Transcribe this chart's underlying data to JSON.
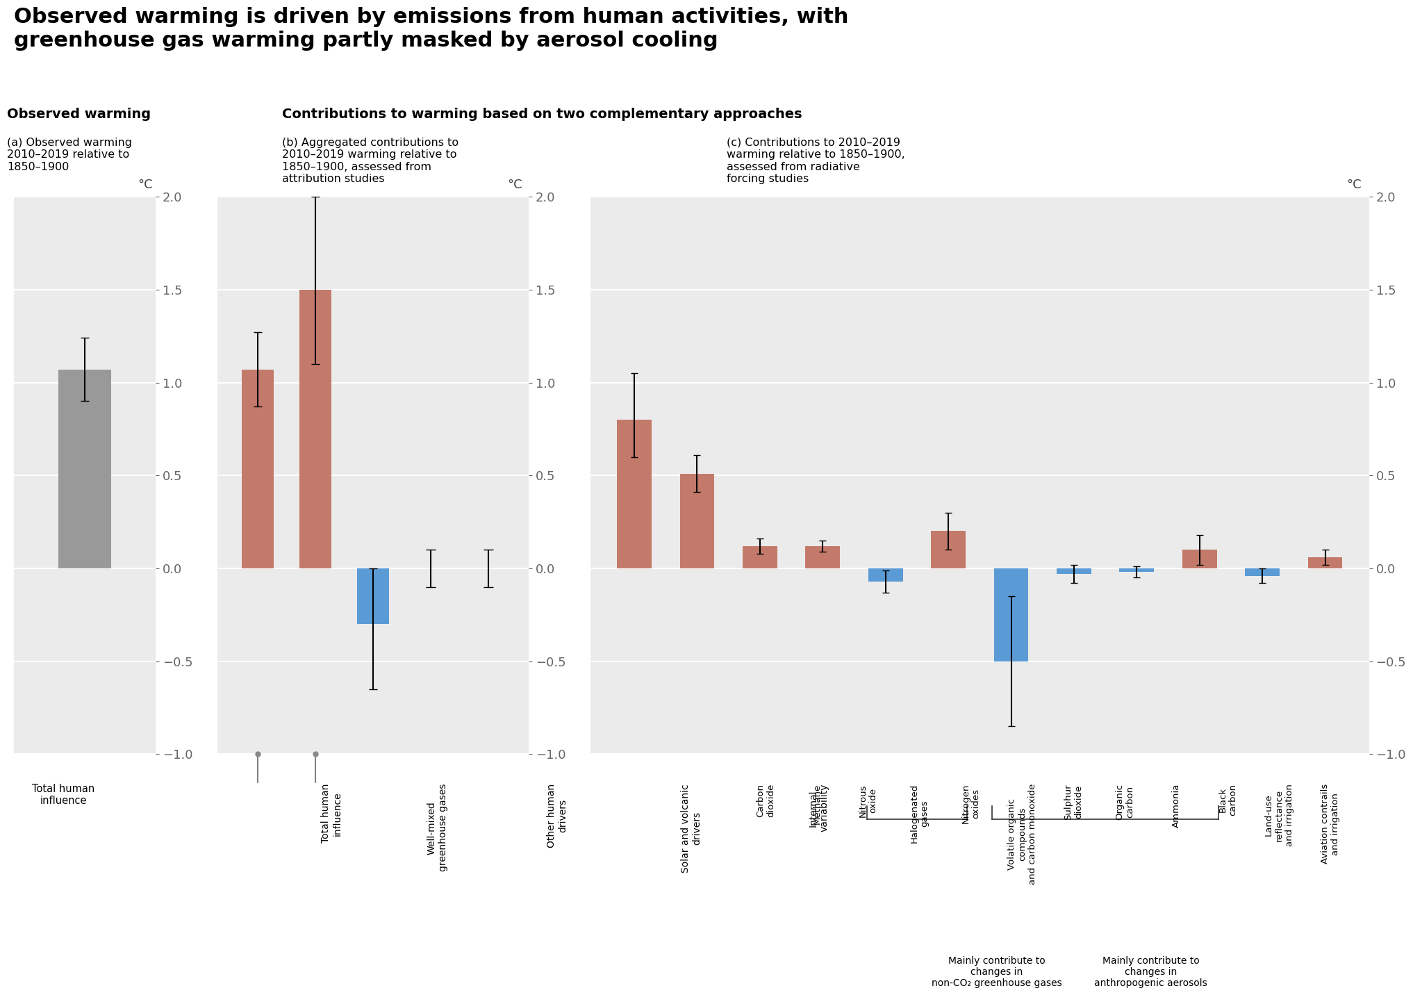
{
  "title": "Observed warming is driven by emissions from human activities, with\ngreenhouse gas warming partly masked by aerosol cooling",
  "title_fontsize": 22,
  "background_color": "#f5f5f5",
  "panel_bg": "#ebebeb",
  "section_headers": {
    "left": "Observed warming",
    "right": "Contributions to warming based on two complementary approaches"
  },
  "panel_a": {
    "subtitle": "(a) Observed warming\n2010–2019 relative to\n1850–1900",
    "ylabel": "°C",
    "ylim": [
      -1.0,
      2.0
    ],
    "yticks": [
      -1.0,
      -0.5,
      0.0,
      0.5,
      1.0,
      1.5,
      2.0
    ],
    "bars": [
      {
        "label": "Total human\ninfluence",
        "value": 1.07,
        "err_low": 0.17,
        "err_high": 0.17,
        "color": "#999999"
      }
    ]
  },
  "panel_b": {
    "subtitle": "(b) Aggregated contributions to\n2010–2019 warming relative to\n1850–1900, assessed from\nattribution studies",
    "ylabel": "°C",
    "ylim": [
      -1.0,
      2.0
    ],
    "yticks": [
      -1.0,
      -0.5,
      0.0,
      0.5,
      1.0,
      1.5,
      2.0
    ],
    "bars": [
      {
        "label": "Total human\ninfluence",
        "value": 1.07,
        "err_low": 0.2,
        "err_high": 0.2,
        "color": "#c47a6a"
      },
      {
        "label": "Well-mixed\ngreenhouse gases",
        "value": 1.5,
        "err_low": 0.4,
        "err_high": 0.5,
        "color": "#c47a6a"
      },
      {
        "label": "Other human\ndrivers",
        "value": -0.3,
        "err_low": 0.35,
        "err_high": 0.3,
        "color": "#5b9bd5"
      },
      {
        "label": "Solar and volcanic\ndrivers",
        "value": 0.0,
        "err_low": 0.1,
        "err_high": 0.1,
        "color": "#999999"
      },
      {
        "label": "Internal\nvariability",
        "value": 0.0,
        "err_low": 0.1,
        "err_high": 0.1,
        "color": "#999999"
      }
    ],
    "bracket_bars": [
      0,
      1
    ],
    "bracket_label": ""
  },
  "panel_c": {
    "subtitle": "(c) Contributions to 2010–2019\nwarming relative to 1850–1900,\nassessed from radiative\nforcing studies",
    "ylabel": "°C",
    "ylim": [
      -1.0,
      2.0
    ],
    "yticks": [
      -1.0,
      -0.5,
      0.0,
      0.5,
      1.0,
      1.5,
      2.0
    ],
    "bars": [
      {
        "label": "Carbon\ndioxide",
        "value": 0.8,
        "err_low": 0.2,
        "err_high": 0.25,
        "color": "#c47a6a"
      },
      {
        "label": "Methane",
        "value": 0.51,
        "err_low": 0.1,
        "err_high": 0.1,
        "color": "#c47a6a"
      },
      {
        "label": "Nitrous\noxide",
        "value": 0.12,
        "err_low": 0.04,
        "err_high": 0.04,
        "color": "#c47a6a"
      },
      {
        "label": "Halogenated\ngases",
        "value": 0.12,
        "err_low": 0.03,
        "err_high": 0.03,
        "color": "#c47a6a"
      },
      {
        "label": "Nitrogen\noxides",
        "value": -0.07,
        "err_low": 0.06,
        "err_high": 0.06,
        "color": "#5b9bd5"
      },
      {
        "label": "Volatile organic\ncompounds\nand carbon monoxide",
        "value": 0.2,
        "err_low": 0.1,
        "err_high": 0.1,
        "color": "#c47a6a"
      },
      {
        "label": "Sulphur\ndioxide",
        "value": -0.5,
        "err_low": 0.35,
        "err_high": 0.35,
        "color": "#5b9bd5"
      },
      {
        "label": "Organic\ncarbon",
        "value": -0.03,
        "err_low": 0.05,
        "err_high": 0.05,
        "color": "#5b9bd5"
      },
      {
        "label": "Ammonia",
        "value": -0.02,
        "err_low": 0.03,
        "err_high": 0.03,
        "color": "#5b9bd5"
      },
      {
        "label": "Black\ncarbon",
        "value": 0.1,
        "err_low": 0.08,
        "err_high": 0.08,
        "color": "#c47a6a"
      },
      {
        "label": "Land-use\nreflectance\nand irrigation",
        "value": -0.04,
        "err_low": 0.04,
        "err_high": 0.04,
        "color": "#5b9bd5"
      },
      {
        "label": "Aviation contrails\nand irrigation",
        "value": 0.06,
        "err_low": 0.04,
        "err_high": 0.04,
        "color": "#c47a6a"
      }
    ],
    "group1_range": [
      4,
      5
    ],
    "group1_label": "Mainly contribute to\nchanges in\nnon-CO₂ greenhouse gases",
    "group2_range": [
      6,
      9
    ],
    "group2_label": "Mainly contribute to\nchanges in\nanthropogenic aerosols"
  },
  "colors": {
    "warm": "#c47a6a",
    "cool": "#5b9bd5",
    "neutral": "#999999",
    "text": "#000000"
  }
}
